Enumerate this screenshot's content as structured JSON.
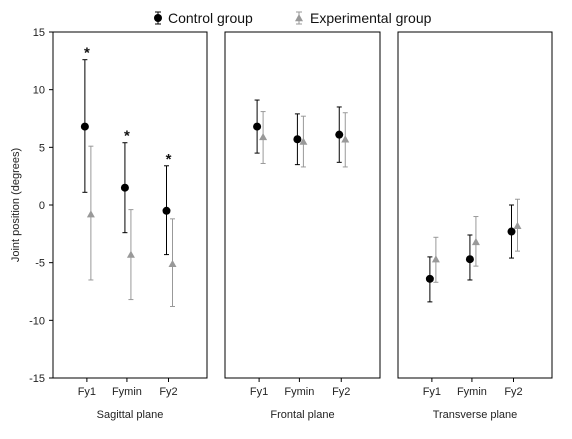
{
  "chart_data": {
    "type": "scatter",
    "subtype": "error-bar",
    "ylabel": "Joint position (degrees)",
    "ylim": [
      -15,
      15
    ],
    "yticks": [
      -15,
      -10,
      -5,
      0,
      5,
      10,
      15
    ],
    "grid": false,
    "legend_position": "top-center",
    "series": [
      {
        "name": "Control group",
        "marker": "circle",
        "color": "#000000"
      },
      {
        "name": "Experimental group",
        "marker": "triangle",
        "color": "#999999"
      }
    ],
    "panels": [
      {
        "label": "Sagittal plane",
        "categories": [
          "Fy1",
          "Fymin",
          "Fy2"
        ],
        "control": [
          {
            "mean": 6.8,
            "low": 1.1,
            "high": 12.6
          },
          {
            "mean": 1.5,
            "low": -2.4,
            "high": 5.4
          },
          {
            "mean": -0.5,
            "low": -4.3,
            "high": 3.4
          }
        ],
        "experimental": [
          {
            "mean": -0.8,
            "low": -6.5,
            "high": 5.1
          },
          {
            "mean": -4.3,
            "low": -8.2,
            "high": -0.4
          },
          {
            "mean": -5.1,
            "low": -8.8,
            "high": -1.2
          }
        ],
        "significance": [
          "*",
          "*",
          "*"
        ]
      },
      {
        "label": "Frontal plane",
        "categories": [
          "Fy1",
          "Fymin",
          "Fy2"
        ],
        "control": [
          {
            "mean": 6.8,
            "low": 4.5,
            "high": 9.1
          },
          {
            "mean": 5.7,
            "low": 3.5,
            "high": 7.9
          },
          {
            "mean": 6.1,
            "low": 3.7,
            "high": 8.5
          }
        ],
        "experimental": [
          {
            "mean": 5.9,
            "low": 3.6,
            "high": 8.1
          },
          {
            "mean": 5.5,
            "low": 3.3,
            "high": 7.7
          },
          {
            "mean": 5.7,
            "low": 3.3,
            "high": 8.0
          }
        ],
        "significance": [
          "",
          "",
          ""
        ]
      },
      {
        "label": "Transverse plane",
        "categories": [
          "Fy1",
          "Fymin",
          "Fy2"
        ],
        "control": [
          {
            "mean": -6.4,
            "low": -8.4,
            "high": -4.5
          },
          {
            "mean": -4.7,
            "low": -6.5,
            "high": -2.6
          },
          {
            "mean": -2.3,
            "low": -4.6,
            "high": 0.0
          }
        ],
        "experimental": [
          {
            "mean": -4.7,
            "low": -6.7,
            "high": -2.8
          },
          {
            "mean": -3.2,
            "low": -5.3,
            "high": -1.0
          },
          {
            "mean": -1.8,
            "low": -4.0,
            "high": 0.5
          }
        ],
        "significance": [
          "",
          "",
          ""
        ]
      }
    ]
  }
}
